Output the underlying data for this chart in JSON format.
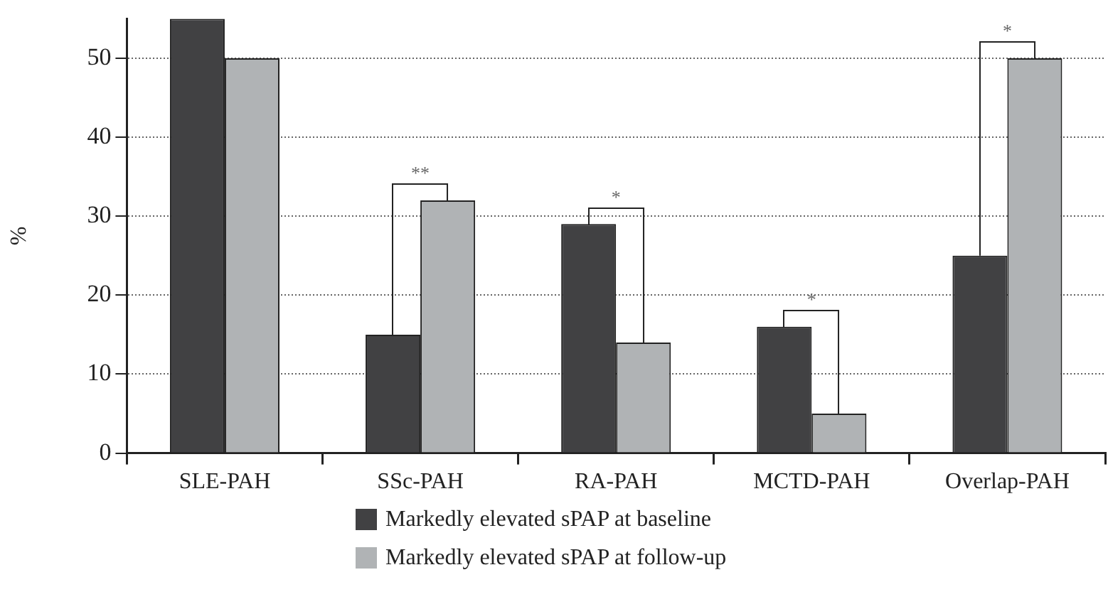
{
  "chart_data": {
    "type": "bar",
    "ylabel": "%",
    "categories": [
      "SLE-PAH",
      "SSc-PAH",
      "RA-PAH",
      "MCTD-PAH",
      "Overlap-PAH"
    ],
    "series": [
      {
        "name": "Markedly elevated sPAP at baseline",
        "color": "#414143",
        "values": [
          55,
          15,
          29,
          16,
          25
        ]
      },
      {
        "name": "Markedly elevated sPAP at follow-up",
        "color": "#b0b3b5",
        "values": [
          50,
          32,
          14,
          5,
          50
        ]
      }
    ],
    "ylim": [
      0,
      55
    ],
    "yticks": [
      0,
      10,
      20,
      30,
      40,
      50
    ],
    "grid": "y",
    "legend": "bottom",
    "annotations": [
      "**",
      "*",
      "*",
      "*"
    ]
  }
}
